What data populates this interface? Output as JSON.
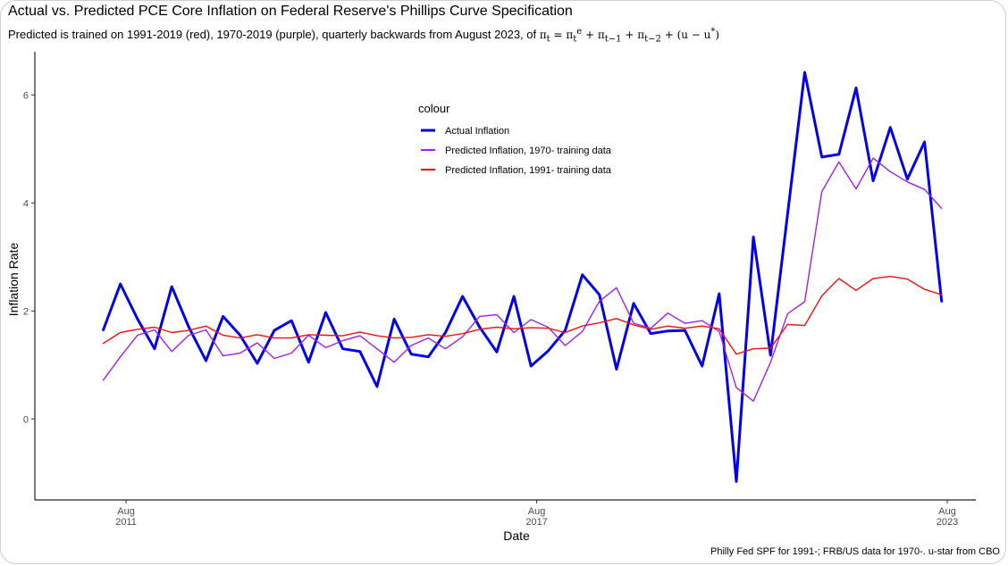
{
  "title": "Actual vs. Predicted PCE Core Inflation on Federal Reserve's Phillips Curve Specification",
  "subtitle": "Predicted is trained on 1991-2019 (red), 1970-2019 (purple), quarterly backwards from August 2023, of",
  "caption": "Philly Fed SPF for 1991-; FRB/US data for 1970-. u-star from CBO",
  "chart_data": {
    "type": "line",
    "xlabel": "Date",
    "ylabel": "Inflation Rate",
    "ylim": [
      -1.5,
      6.8
    ],
    "xlim": [
      2010.25,
      2024.0
    ],
    "grid": false,
    "legend_title": "colour",
    "legend_position": "top-center",
    "y_ticks": [
      0,
      2,
      4,
      6
    ],
    "x_ticks": [
      {
        "x": 2011.583,
        "line1": "Aug",
        "line2": "2011"
      },
      {
        "x": 2017.583,
        "line1": "Aug",
        "line2": "2017"
      },
      {
        "x": 2023.583,
        "line1": "Aug",
        "line2": "2023"
      }
    ],
    "x": [
      2011.25,
      2011.5,
      2011.75,
      2012.0,
      2012.25,
      2012.5,
      2012.75,
      2013.0,
      2013.25,
      2013.5,
      2013.75,
      2014.0,
      2014.25,
      2014.5,
      2014.75,
      2015.0,
      2015.25,
      2015.5,
      2015.75,
      2016.0,
      2016.25,
      2016.5,
      2016.75,
      2017.0,
      2017.25,
      2017.5,
      2017.75,
      2018.0,
      2018.25,
      2018.5,
      2018.75,
      2019.0,
      2019.25,
      2019.5,
      2019.75,
      2020.0,
      2020.25,
      2020.5,
      2020.75,
      2021.0,
      2021.25,
      2021.5,
      2021.75,
      2022.0,
      2022.25,
      2022.5,
      2022.75,
      2023.0,
      2023.25,
      2023.5
    ],
    "series": [
      {
        "name": "Actual Inflation",
        "color": "#0000ee",
        "width": 3,
        "values": [
          1.65,
          2.5,
          1.85,
          1.3,
          2.45,
          1.7,
          1.08,
          1.9,
          1.55,
          1.03,
          1.64,
          1.82,
          1.05,
          1.97,
          1.3,
          1.25,
          0.6,
          1.85,
          1.2,
          1.15,
          1.6,
          2.27,
          1.7,
          1.24,
          2.27,
          0.98,
          1.26,
          1.64,
          2.67,
          2.3,
          0.92,
          2.14,
          1.58,
          1.63,
          1.64,
          0.98,
          2.32,
          -1.16,
          3.37,
          1.18,
          3.8,
          6.42,
          4.85,
          4.9,
          6.13,
          4.41,
          5.4,
          4.44,
          5.13,
          2.18
        ]
      },
      {
        "name": "Predicted Inflation, 1970- training data",
        "color": "#a020f0",
        "width": 1.4,
        "values": [
          0.72,
          1.15,
          1.55,
          1.65,
          1.25,
          1.55,
          1.65,
          1.17,
          1.22,
          1.41,
          1.12,
          1.22,
          1.55,
          1.32,
          1.45,
          1.54,
          1.3,
          1.05,
          1.36,
          1.5,
          1.3,
          1.52,
          1.9,
          1.93,
          1.6,
          1.84,
          1.7,
          1.36,
          1.62,
          2.18,
          2.43,
          1.77,
          1.68,
          1.96,
          1.77,
          1.82,
          1.62,
          0.58,
          0.33,
          1.05,
          1.95,
          2.17,
          4.21,
          4.76,
          4.26,
          4.83,
          4.58,
          4.39,
          4.25,
          3.9
        ]
      },
      {
        "name": "Predicted Inflation, 1991- training data",
        "color": "#ee1111",
        "width": 1.4,
        "values": [
          1.4,
          1.6,
          1.66,
          1.7,
          1.6,
          1.64,
          1.72,
          1.55,
          1.5,
          1.56,
          1.5,
          1.5,
          1.56,
          1.55,
          1.54,
          1.61,
          1.54,
          1.5,
          1.51,
          1.56,
          1.53,
          1.58,
          1.66,
          1.7,
          1.67,
          1.69,
          1.68,
          1.6,
          1.72,
          1.78,
          1.86,
          1.74,
          1.66,
          1.72,
          1.68,
          1.72,
          1.67,
          1.2,
          1.3,
          1.31,
          1.75,
          1.73,
          2.28,
          2.6,
          2.38,
          2.6,
          2.64,
          2.59,
          2.4,
          2.3
        ]
      }
    ]
  }
}
